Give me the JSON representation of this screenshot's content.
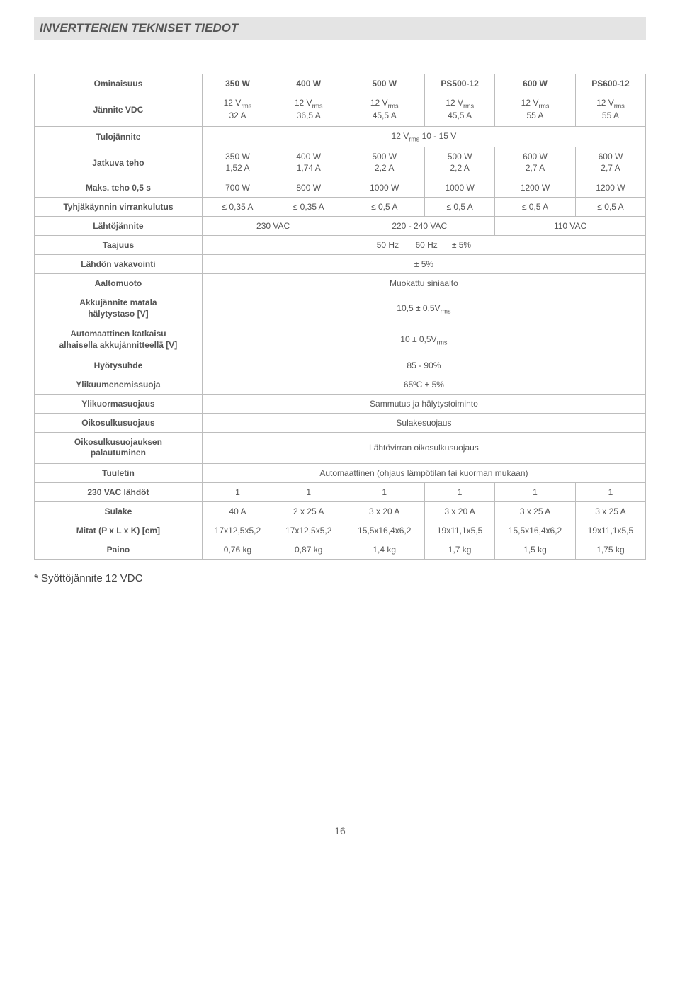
{
  "section_title": "INVERTTERIEN TEKNISET TIEDOT",
  "colors": {
    "title_bg": "#e4e4e4",
    "border": "#bdbdbd",
    "text": "#555555"
  },
  "fonts": {
    "title_size_pt": 13,
    "cell_size_pt": 9,
    "footnote_size_pt": 11
  },
  "header": {
    "c0": "Ominaisuus",
    "c1": "350 W",
    "c2": "400 W",
    "c3": "500 W",
    "c4": "PS500-12",
    "c5": "600 W",
    "c6": "PS600-12"
  },
  "rows": {
    "r1": {
      "label": "Jännite VDC",
      "c1a": "12 V",
      "c1b": "32 A",
      "c2a": "12 V",
      "c2b": "36,5 A",
      "c3a": "12 V",
      "c3b": "45,5 A",
      "c4a": "12 V",
      "c4b": "45,5 A",
      "c5a": "12 V",
      "c5b": "55 A",
      "c6a": "12 V",
      "c6b": "55 A"
    },
    "r2": {
      "label": "Tulojännite",
      "span": "12 V",
      "span_b": " 10 - 15 V"
    },
    "r3": {
      "label": "Jatkuva teho",
      "c1a": "350 W",
      "c1b": "1,52 A",
      "c2a": "400 W",
      "c2b": "1,74 A",
      "c3a": "500 W",
      "c3b": "2,2 A",
      "c4a": "500 W",
      "c4b": "2,2 A",
      "c5a": "600 W",
      "c5b": "2,7 A",
      "c6a": "600 W",
      "c6b": "2,7 A"
    },
    "r4": {
      "label": "Maks. teho 0,5 s",
      "c1": "700 W",
      "c2": "800 W",
      "c3": "1000 W",
      "c4": "1000 W",
      "c5": "1200 W",
      "c6": "1200 W"
    },
    "r5": {
      "label": "Tyhjäkäynnin virrankulutus",
      "c1": "≤ 0,35 A",
      "c2": "≤ 0,35 A",
      "c3": "≤ 0,5 A",
      "c4": "≤ 0,5 A",
      "c5": "≤ 0,5 A",
      "c6": "≤ 0,5 A"
    },
    "r6": {
      "label": "Lähtöjännite",
      "v1": " 230 VAC",
      "v2": " 220 - 240 VAC",
      "v3": " 110 VAC"
    },
    "r7": {
      "label": "Taajuus",
      "v1": " 50 Hz",
      "v2": " 60 Hz",
      "v3": "± 5%"
    },
    "r8": {
      "label": "Lähdön vakavointi",
      "v": "± 5%"
    },
    "r9": {
      "label": "Aaltomuoto",
      "v": "Muokattu siniaalto"
    },
    "r10": {
      "label_a": "Akkujännite matala",
      "label_b": "hälytystaso [V]",
      "v": "10,5 ± 0,5V"
    },
    "r11": {
      "label_a": "Automaattinen katkaisu",
      "label_b": "alhaisella akkujännitteellä [V]",
      "v": "10 ± 0,5V"
    },
    "r12": {
      "label": "Hyötysuhde",
      "v": "85 - 90%"
    },
    "r13": {
      "label": "Ylikuumenemissuoja",
      "v": "65ºC ± 5%"
    },
    "r14": {
      "label": "Ylikuormasuojaus",
      "v": "Sammutus ja hälytystoiminto"
    },
    "r15": {
      "label": "Oikosulkusuojaus",
      "v": "Sulakesuojaus"
    },
    "r16": {
      "label_a": "Oikosulkusuojauksen",
      "label_b": "palautuminen",
      "v": "Lähtövirran oikosulkusuojaus"
    },
    "r17": {
      "label": "Tuuletin",
      "v": "Automaattinen (ohjaus lämpötilan tai kuorman mukaan)"
    },
    "r18": {
      "label": "230 VAC lähdöt",
      "c1": "1",
      "c2": "1",
      "c3": "1",
      "c4": "1",
      "c5": "1",
      "c6": "1"
    },
    "r19": {
      "label": "Sulake",
      "c1": "40 A",
      "c2": "2 x 25 A",
      "c3": "3 x 20 A",
      "c4": "3 x 20 A",
      "c5": "3 x 25 A",
      "c6": "3 x 25 A"
    },
    "r20": {
      "label": "Mitat (P x L x K) [cm]",
      "c1": "17x12,5x5,2",
      "c2": "17x12,5x5,2",
      "c3": "15,5x16,4x6,2",
      "c4": "19x11,1x5,5",
      "c5": "15,5x16,4x6,2",
      "c6": "19x11,1x5,5"
    },
    "r21": {
      "label": "Paino",
      "c1": "0,76 kg",
      "c2": "0,87 kg",
      "c3": "1,4 kg",
      "c4": "1,7 kg",
      "c5": "1,5 kg",
      "c6": "1,75 kg"
    }
  },
  "rms": "rms",
  "footnote": "* Syöttöjännite 12 VDC",
  "page_number": "16"
}
